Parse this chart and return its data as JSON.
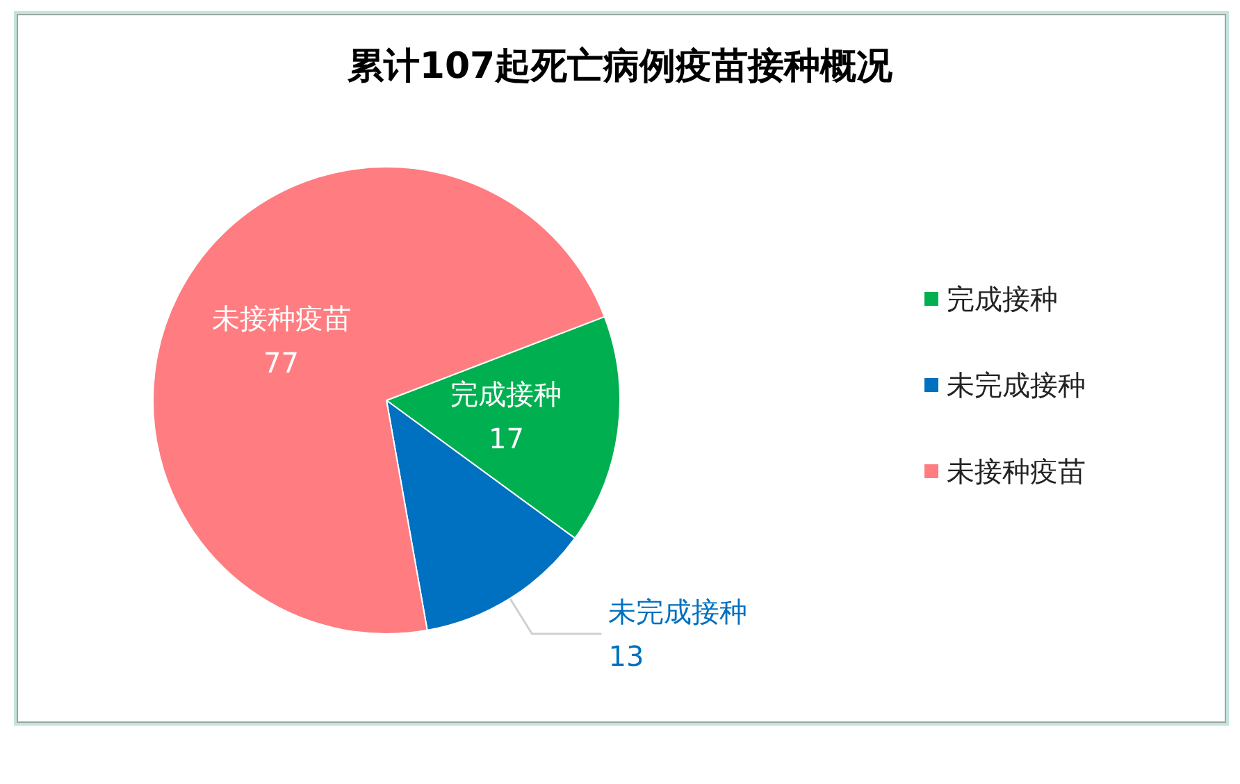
{
  "chart_data": {
    "type": "pie",
    "title": "累计107起死亡病例疫苗接种概况",
    "categories": [
      "完成接种",
      "未完成接种",
      "未接种疫苗"
    ],
    "values": [
      17,
      13,
      77
    ],
    "colors": [
      "#00b050",
      "#0070c0",
      "#ff7c80"
    ],
    "data_labels": true,
    "legend": "right"
  }
}
